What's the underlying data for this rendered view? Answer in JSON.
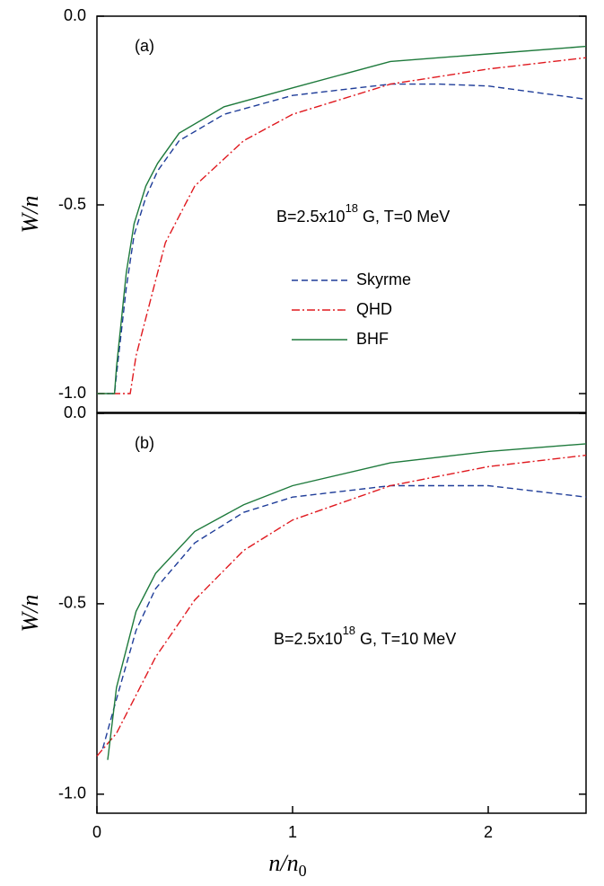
{
  "chart_data": [
    {
      "type": "line",
      "panel_label": "(a)",
      "annotation": {
        "base": "B=2.5x10",
        "superscript": "18",
        "suffix": " G, T=0 MeV"
      },
      "ylabel": "W/n",
      "xlim": [
        0,
        2.5
      ],
      "ylim": [
        -1.05,
        0
      ],
      "yticks": [
        {
          "value": 0,
          "label": "0.0"
        },
        {
          "value": -0.5,
          "label": "-0.5"
        },
        {
          "value": -1,
          "label": "-1.0"
        }
      ],
      "legend": "center right",
      "series": [
        {
          "name": "Skyrme",
          "color": "#1f3d99",
          "style": "dashed",
          "x": [
            0,
            0.09,
            0.1,
            0.15,
            0.19,
            0.25,
            0.31,
            0.42,
            0.65,
            1.0,
            1.5,
            1.75,
            2.0,
            2.5
          ],
          "values": [
            -1,
            -1,
            -0.95,
            -0.72,
            -0.58,
            -0.48,
            -0.41,
            -0.33,
            -0.26,
            -0.21,
            -0.18,
            -0.18,
            -0.185,
            -0.22
          ]
        },
        {
          "name": "QHD",
          "color": "#e0191f",
          "style": "dashdot",
          "x": [
            0,
            0.17,
            0.2,
            0.25,
            0.35,
            0.5,
            0.75,
            1.0,
            1.5,
            2.0,
            2.5
          ],
          "values": [
            -1,
            -1,
            -0.9,
            -0.8,
            -0.6,
            -0.45,
            -0.33,
            -0.26,
            -0.18,
            -0.14,
            -0.11
          ]
        },
        {
          "name": "BHF",
          "color": "#1e7a3c",
          "style": "solid",
          "x": [
            0,
            0.09,
            0.1,
            0.15,
            0.19,
            0.25,
            0.31,
            0.42,
            0.65,
            1.0,
            1.5,
            2.0,
            2.5
          ],
          "values": [
            -1,
            -1,
            -0.93,
            -0.68,
            -0.55,
            -0.45,
            -0.39,
            -0.31,
            -0.24,
            -0.19,
            -0.12,
            -0.1,
            -0.08
          ]
        }
      ]
    },
    {
      "type": "line",
      "panel_label": "(b)",
      "annotation": {
        "base": "B=2.5x10",
        "superscript": "18",
        "suffix": " G, T=10 MeV"
      },
      "ylabel": "W/n",
      "xlabel": {
        "base": "n/n",
        "subscript": "0"
      },
      "xlim": [
        0,
        2.5
      ],
      "xticks": [
        0,
        1,
        2
      ],
      "ylim": [
        -1.05,
        0
      ],
      "yticks": [
        {
          "value": 0,
          "label": "0.0"
        },
        {
          "value": -0.5,
          "label": "-0.5"
        },
        {
          "value": -1,
          "label": "-1.0"
        }
      ],
      "series": [
        {
          "color": "#1f3d99",
          "style": "dashed",
          "x": [
            0.03,
            0.1,
            0.2,
            0.3,
            0.5,
            0.75,
            1.0,
            1.5,
            2.0,
            2.5
          ],
          "values": [
            -0.88,
            -0.75,
            -0.57,
            -0.46,
            -0.34,
            -0.26,
            -0.22,
            -0.19,
            -0.19,
            -0.22
          ]
        },
        {
          "color": "#e0191f",
          "style": "dashdot",
          "x": [
            0,
            0.1,
            0.2,
            0.3,
            0.5,
            0.75,
            1.0,
            1.5,
            2.0,
            2.5
          ],
          "values": [
            -0.9,
            -0.84,
            -0.74,
            -0.64,
            -0.49,
            -0.36,
            -0.28,
            -0.19,
            -0.14,
            -0.11
          ]
        },
        {
          "color": "#1e7a3c",
          "style": "solid",
          "x": [
            0.055,
            0.1,
            0.2,
            0.3,
            0.5,
            0.75,
            1.0,
            1.5,
            2.0,
            2.5
          ],
          "values": [
            -0.91,
            -0.72,
            -0.52,
            -0.42,
            -0.31,
            -0.24,
            -0.19,
            -0.13,
            -0.1,
            -0.08
          ]
        }
      ]
    }
  ]
}
